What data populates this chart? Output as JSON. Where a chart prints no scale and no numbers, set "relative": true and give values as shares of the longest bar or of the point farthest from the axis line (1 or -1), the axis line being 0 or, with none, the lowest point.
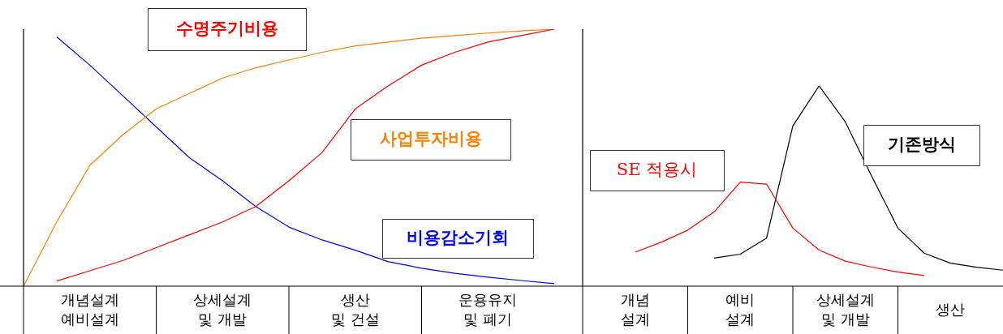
{
  "chart_data": [
    {
      "type": "line",
      "relative": true,
      "categories": [
        null,
        null,
        null,
        null,
        null,
        null,
        null,
        null,
        null,
        null,
        null,
        null,
        null,
        null,
        null,
        null,
        null
      ],
      "marker": "none",
      "annotations": [
        "개념설계\n예비설계",
        "상세설계\n및 개발",
        "생산\n및 건설",
        "운용유지\n및 폐기"
      ],
      "series": [
        {
          "name": "수명주기비용",
          "color": "#ff0000",
          "values": [
            null,
            0.02,
            0.06,
            0.1,
            0.15,
            0.2,
            0.25,
            0.31,
            0.41,
            0.52,
            0.69,
            0.78,
            0.86,
            0.91,
            0.95,
            0.975,
            1.0
          ]
        },
        {
          "name": "사업투자비용",
          "color": "#ff8000",
          "values": [
            0,
            0.25,
            0.47,
            0.59,
            0.69,
            0.75,
            0.81,
            0.85,
            0.88,
            0.91,
            0.935,
            0.95,
            0.965,
            0.975,
            0.985,
            0.993,
            1.0
          ]
        },
        {
          "name": "비용감소기회",
          "color": "#0000ff",
          "values": [
            null,
            0.97,
            0.86,
            0.74,
            0.62,
            0.5,
            0.41,
            0.31,
            0.23,
            0.18,
            0.14,
            0.095,
            0.07,
            0.05,
            0.035,
            0.022,
            0.01
          ]
        }
      ]
    },
    {
      "type": "line",
      "relative": true,
      "categories": [
        null,
        null,
        null,
        null,
        null,
        null,
        null,
        null,
        null,
        null,
        null,
        null,
        null,
        null,
        null,
        null,
        null
      ],
      "marker": "none",
      "annotations": [
        "개념\n설계",
        "예비\n설계",
        "상세설계\n및 개발",
        "생산"
      ],
      "series": [
        {
          "name": "SE 적용시",
          "color": "#ff0000",
          "values": [
            null,
            null,
            0.17,
            0.22,
            0.28,
            0.37,
            0.52,
            0.51,
            0.29,
            0.18,
            0.125,
            0.095,
            0.07,
            0.053,
            null,
            null,
            null
          ]
        },
        {
          "name": "기존방식",
          "color": "#000000",
          "values": [
            null,
            null,
            null,
            null,
            null,
            0.14,
            0.16,
            0.24,
            0.8,
            1.0,
            0.82,
            0.55,
            0.29,
            0.165,
            0.115,
            0.095,
            0.08
          ]
        }
      ]
    }
  ]
}
